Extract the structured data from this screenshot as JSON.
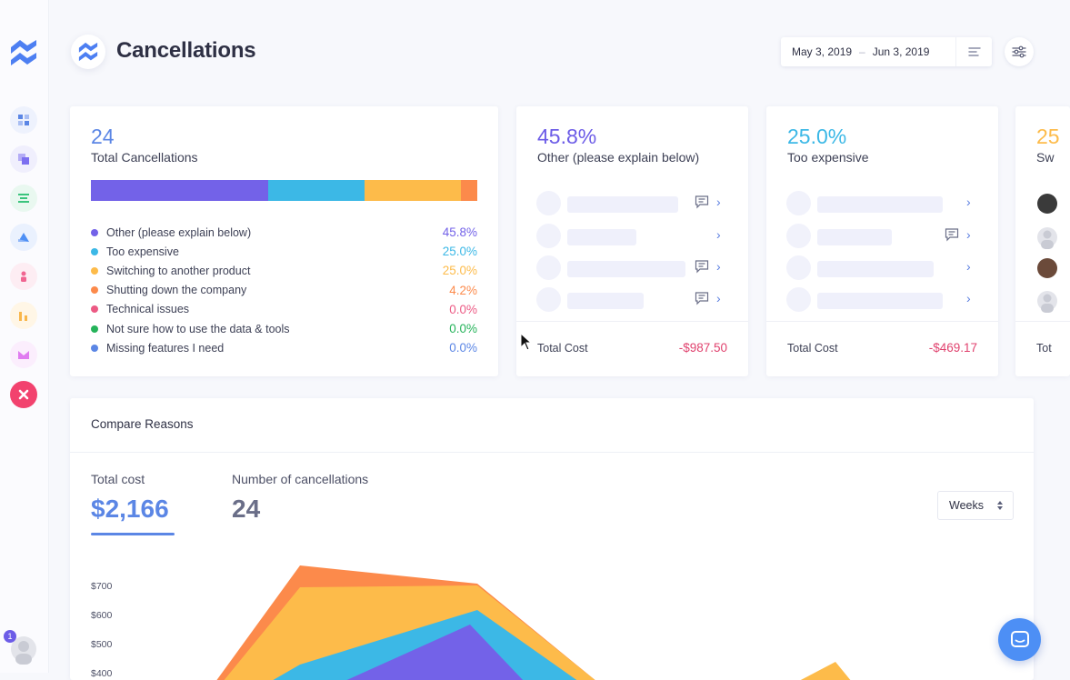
{
  "page": {
    "title": "Cancellations"
  },
  "header": {
    "date_start": "May 3, 2019",
    "date_separator": "–",
    "date_end": "Jun 3, 2019"
  },
  "sidebar": {
    "items": [
      {
        "icon": "dashboard-icon",
        "color": "#5b86e5"
      },
      {
        "icon": "layers-icon",
        "color": "#7c6ff0"
      },
      {
        "icon": "list-icon",
        "color": "#3bc47d"
      },
      {
        "icon": "triangle-chart-icon",
        "color": "#4d8ff5"
      },
      {
        "icon": "person-icon",
        "color": "#f06591"
      },
      {
        "icon": "bar-chart-icon",
        "color": "#f9b64a"
      },
      {
        "icon": "mail-icon",
        "color": "#e07cf0"
      },
      {
        "icon": "cancel-icon",
        "color": "#f2426e"
      }
    ],
    "notification_count": "1"
  },
  "summary": {
    "count": "24",
    "label": "Total Cancellations",
    "bar": [
      {
        "color": "#7362e8",
        "value": 45.8
      },
      {
        "color": "#3cb8e6",
        "value": 25.0
      },
      {
        "color": "#fdbb4a",
        "value": 25.0
      },
      {
        "color": "#fc8a4b",
        "value": 4.2
      }
    ],
    "legend": [
      {
        "label": "Other (please explain below)",
        "pct": "45.8%",
        "color": "#7362e8"
      },
      {
        "label": "Too expensive",
        "pct": "25.0%",
        "color": "#3cb8e6"
      },
      {
        "label": "Switching to another product",
        "pct": "25.0%",
        "color": "#fdbb4a"
      },
      {
        "label": "Shutting down the company",
        "pct": "4.2%",
        "color": "#fc8a4b"
      },
      {
        "label": "Technical issues",
        "pct": "0.0%",
        "color": "#ec5a84"
      },
      {
        "label": "Not sure how to use the data & tools",
        "pct": "0.0%",
        "color": "#25b35a"
      },
      {
        "label": "Missing features I need",
        "pct": "0.0%",
        "color": "#5b86e5"
      }
    ]
  },
  "reason_cards": [
    {
      "pct": "45.8%",
      "label": "Other (please explain below)",
      "color": "#6c5ce7",
      "cost_label": "Total Cost",
      "cost": "-$987.50"
    },
    {
      "pct": "25.0%",
      "label": "Too expensive",
      "color": "#3cb8e6",
      "cost_label": "Total Cost",
      "cost": "-$469.17"
    },
    {
      "pct": "25",
      "label": "Sw",
      "color": "#fdbb4a",
      "cost_label": "Tot"
    }
  ],
  "compare": {
    "title": "Compare Reasons",
    "metrics": [
      {
        "label": "Total cost",
        "value": "$2,166",
        "color": "#5b86e5"
      },
      {
        "label": "Number of cancellations",
        "value": "24",
        "color": "#6a6e88"
      }
    ],
    "period": "Weeks",
    "y_ticks": [
      "$700",
      "$600",
      "$500",
      "$400"
    ]
  },
  "chart_data": {
    "type": "area",
    "y_ticks": [
      "$700",
      "$600",
      "$500",
      "$400"
    ],
    "series": [
      {
        "color": "#fc8a4b"
      },
      {
        "color": "#fdbb4a"
      },
      {
        "color": "#3cb8e6"
      },
      {
        "color": "#7362e8"
      }
    ]
  }
}
